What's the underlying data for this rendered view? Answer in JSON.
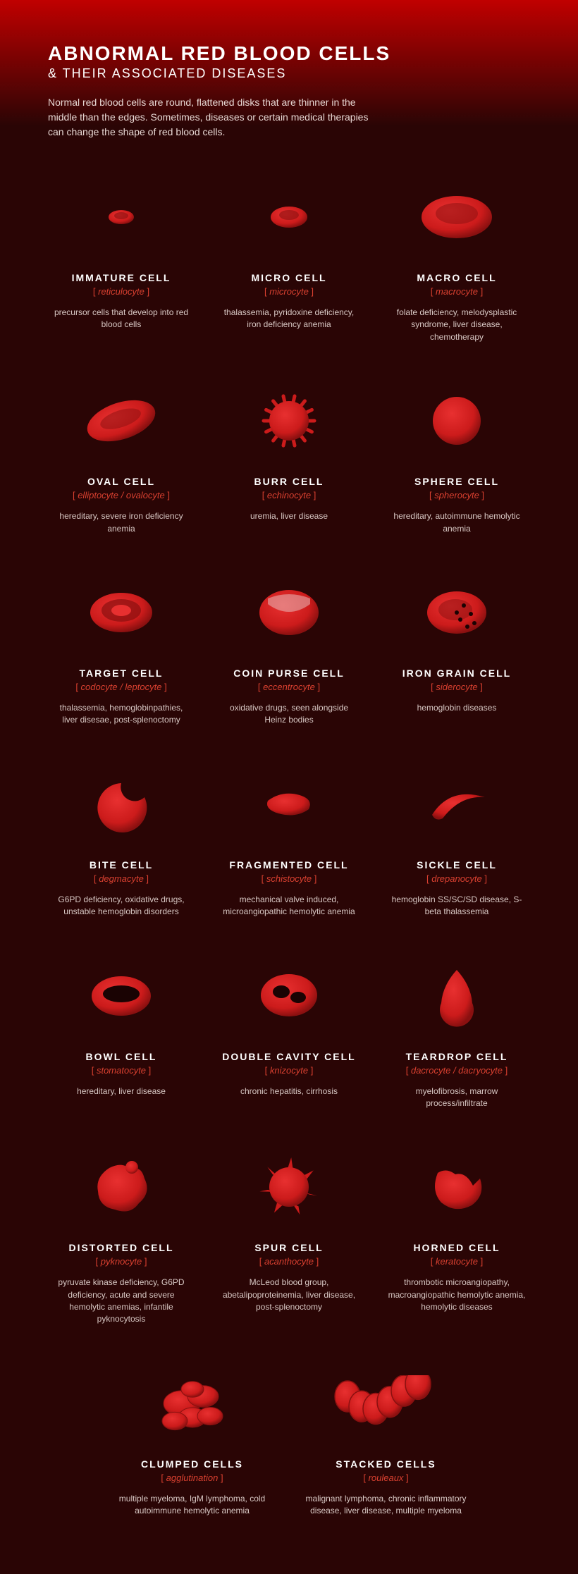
{
  "header": {
    "title": "ABNORMAL RED BLOOD CELLS",
    "subtitle": "& THEIR ASSOCIATED DISEASES",
    "intro": "Normal red blood cells are round, flattened disks that are thinner in the middle than the edges. Sometimes, diseases or certain medical therapies can change the shape of red blood cells."
  },
  "style": {
    "bg_top": "#c00000",
    "bg_body": "#2a0505",
    "title_color": "#ffffff",
    "intro_color": "#e8d8d4",
    "sci_color": "#d94030",
    "desc_color": "#d8c8c4",
    "cell_fill": "#cc1b1b",
    "cell_fill_light": "#e83030",
    "cell_fill_dark": "#8a1010",
    "title_fontsize": 28,
    "subtitle_fontsize": 18,
    "intro_fontsize": 14,
    "cell_name_fontsize": 14,
    "cell_sci_fontsize": 13,
    "cell_desc_fontsize": 12
  },
  "cells": [
    {
      "name": "IMMATURE CELL",
      "sci": "reticulocyte",
      "desc": "precursor cells that develop into red blood cells",
      "shape": "tiny-disc"
    },
    {
      "name": "MICRO CELL",
      "sci": "microcyte",
      "desc": "thalassemia, pyridoxine deficiency, iron deficiency anemia",
      "shape": "small-disc"
    },
    {
      "name": "MACRO CELL",
      "sci": "macrocyte",
      "desc": "folate deficiency, melodysplastic syndrome, liver disease, chemotherapy",
      "shape": "big-disc"
    },
    {
      "name": "OVAL CELL",
      "sci": "elliptocyte / ovalocyte",
      "desc": "hereditary, severe iron deficiency anemia",
      "shape": "oval"
    },
    {
      "name": "BURR CELL",
      "sci": "echinocyte",
      "desc": "uremia, liver disease",
      "shape": "burr"
    },
    {
      "name": "SPHERE CELL",
      "sci": "spherocyte",
      "desc": "hereditary, autoimmune hemolytic anemia",
      "shape": "sphere"
    },
    {
      "name": "TARGET CELL",
      "sci": "codocyte / leptocyte",
      "desc": "thalassemia, hemoglobinpathies, liver disesae, post-splenoctomy",
      "shape": "target"
    },
    {
      "name": "COIN PURSE CELL",
      "sci": "eccentrocyte",
      "desc": "oxidative drugs, seen alongside Heinz bodies",
      "shape": "coin-purse"
    },
    {
      "name": "IRON GRAIN CELL",
      "sci": "siderocyte",
      "desc": "hemoglobin diseases",
      "shape": "iron-grain"
    },
    {
      "name": "BITE CELL",
      "sci": "degmacyte",
      "desc": "G6PD deficiency, oxidative drugs, unstable hemoglobin disorders",
      "shape": "bite"
    },
    {
      "name": "FRAGMENTED CELL",
      "sci": "schistocyte",
      "desc": "mechanical valve induced, microangiopathic hemolytic anemia",
      "shape": "fragment"
    },
    {
      "name": "SICKLE CELL",
      "sci": "drepanocyte",
      "desc": "hemoglobin SS/SC/SD disease, S-beta thalassemia",
      "shape": "sickle"
    },
    {
      "name": "BOWL CELL",
      "sci": "stomatocyte",
      "desc": "hereditary, liver disease",
      "shape": "bowl"
    },
    {
      "name": "DOUBLE CAVITY CELL",
      "sci": "knizocyte",
      "desc": "chronic hepatitis, cirrhosis",
      "shape": "double-cavity"
    },
    {
      "name": "TEARDROP CELL",
      "sci": "dacrocyte / dacryocyte",
      "desc": "myelofibrosis, marrow process/infiltrate",
      "shape": "teardrop"
    },
    {
      "name": "DISTORTED CELL",
      "sci": "pyknocyte",
      "desc": "pyruvate kinase deficiency, G6PD deficiency, acute and severe hemolytic anemias, infantile pyknocytosis",
      "shape": "distorted"
    },
    {
      "name": "SPUR CELL",
      "sci": "acanthocyte",
      "desc": "McLeod blood group, abetalipoproteinemia, liver disease, post-splenoctomy",
      "shape": "spur"
    },
    {
      "name": "HORNED CELL",
      "sci": "keratocyte",
      "desc": "thrombotic microangiopathy, macroangiopathic hemolytic anemia, hemolytic diseases",
      "shape": "horned"
    },
    {
      "name": "CLUMPED CELLS",
      "sci": "agglutination",
      "desc": "multiple myeloma, IgM lymphoma, cold autoimmune hemolytic anemia",
      "shape": "clumped"
    },
    {
      "name": "STACKED CELLS",
      "sci": "rouleaux",
      "desc": "malignant lymphoma, chronic inflammatory disease, liver disease, multiple myeloma",
      "shape": "stacked"
    }
  ]
}
